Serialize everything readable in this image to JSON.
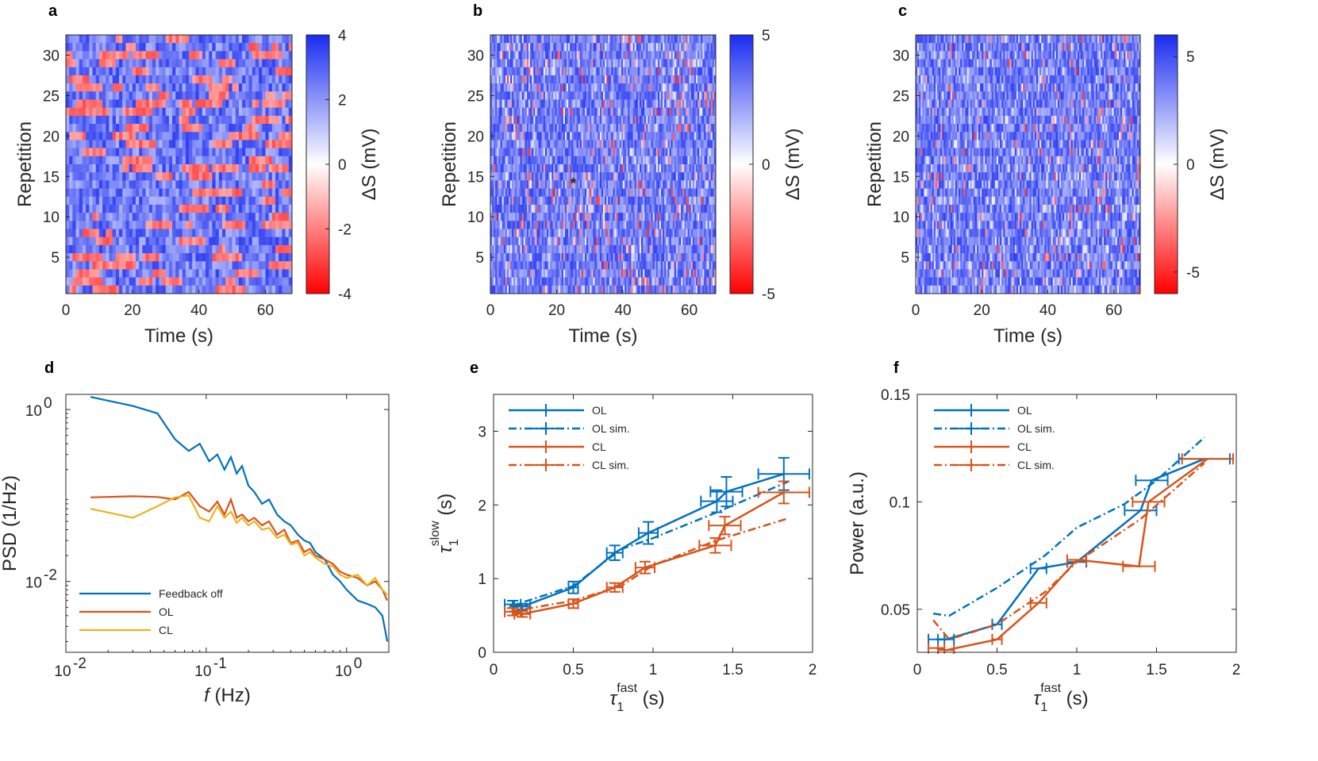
{
  "chart_data": [
    {
      "id": "a",
      "panel_label": "a",
      "type": "heatmap",
      "xlabel": "Time (s)",
      "ylabel": "Repetition",
      "xlim": [
        0,
        68
      ],
      "ylim": [
        0.5,
        32.5
      ],
      "xticks": [
        "0",
        "20",
        "40",
        "60"
      ],
      "yticks": [
        "5",
        "10",
        "15",
        "20",
        "25",
        "30"
      ],
      "colorbar": {
        "label": "ΔS (mV)",
        "range": [
          -4,
          4
        ],
        "ticks": [
          "4",
          "2",
          "0",
          "-2",
          "-4"
        ]
      },
      "rows": 32,
      "cols": 68,
      "seed": 11,
      "red_bias": 0.13,
      "row_runs": true
    },
    {
      "id": "b",
      "panel_label": "b",
      "type": "heatmap",
      "xlabel": "Time (s)",
      "ylabel": "Repetition",
      "xlim": [
        0,
        68
      ],
      "ylim": [
        0.5,
        32.5
      ],
      "xticks": [
        "0",
        "20",
        "40",
        "60"
      ],
      "yticks": [
        "5",
        "10",
        "15",
        "20",
        "25",
        "30"
      ],
      "colorbar": {
        "label": "ΔS (mV)",
        "range": [
          -5,
          5
        ],
        "ticks": [
          "5",
          "0",
          "-5"
        ]
      },
      "rows": 32,
      "cols": 136,
      "seed": 23,
      "red_bias": 0.06,
      "row_runs": false,
      "marker": {
        "time": 25,
        "repetition": 14,
        "color": "#22dd22"
      }
    },
    {
      "id": "c",
      "panel_label": "c",
      "type": "heatmap",
      "xlabel": "Time (s)",
      "ylabel": "Repetition",
      "xlim": [
        0,
        68
      ],
      "ylim": [
        0.5,
        32.5
      ],
      "xticks": [
        "0",
        "20",
        "40",
        "60"
      ],
      "yticks": [
        "5",
        "10",
        "15",
        "20",
        "25",
        "30"
      ],
      "colorbar": {
        "label": "ΔS (mV)",
        "range": [
          -6,
          6
        ],
        "ticks": [
          "5",
          "0",
          "-5"
        ]
      },
      "rows": 32,
      "cols": 136,
      "seed": 37,
      "red_bias": 0.04,
      "row_runs": false
    },
    {
      "id": "d",
      "panel_label": "d",
      "type": "line",
      "log": true,
      "xlabel_italic": "f",
      "xlabel": " (Hz)",
      "ylabel": "PSD (1/Hz)",
      "xlim": [
        0.01,
        2
      ],
      "ylim": [
        0.0015,
        1.5
      ],
      "xticks": [
        0.01,
        0.1,
        1
      ],
      "yticks": [
        0.01,
        1
      ],
      "xtick_bases": [
        "10",
        "10",
        "10"
      ],
      "xtick_exps": [
        "-2",
        "-1",
        "0"
      ],
      "ytick_bases": [
        "10",
        "10"
      ],
      "ytick_exps": [
        "-2",
        "0"
      ],
      "legend": [
        "Feedback off",
        "OL",
        "CL"
      ],
      "series": [
        {
          "name": "Feedback off",
          "color": "#0072BD",
          "x": [
            0.015,
            0.03,
            0.045,
            0.06,
            0.075,
            0.09,
            0.105,
            0.12,
            0.135,
            0.15,
            0.165,
            0.18,
            0.2,
            0.22,
            0.25,
            0.28,
            0.32,
            0.36,
            0.4,
            0.45,
            0.5,
            0.55,
            0.6,
            0.7,
            0.8,
            0.9,
            1.0,
            1.2,
            1.4,
            1.6,
            1.8,
            1.95
          ],
          "y": [
            1.4,
            1.1,
            0.9,
            0.45,
            0.33,
            0.4,
            0.25,
            0.3,
            0.2,
            0.28,
            0.18,
            0.22,
            0.13,
            0.11,
            0.08,
            0.09,
            0.06,
            0.05,
            0.045,
            0.035,
            0.03,
            0.028,
            0.022,
            0.018,
            0.012,
            0.01,
            0.008,
            0.006,
            0.0055,
            0.005,
            0.004,
            0.002
          ]
        },
        {
          "name": "OL",
          "color": "#D95319",
          "x": [
            0.015,
            0.03,
            0.045,
            0.06,
            0.075,
            0.09,
            0.105,
            0.12,
            0.135,
            0.15,
            0.165,
            0.18,
            0.2,
            0.22,
            0.25,
            0.28,
            0.32,
            0.36,
            0.4,
            0.45,
            0.5,
            0.55,
            0.6,
            0.7,
            0.8,
            0.9,
            1.0,
            1.2,
            1.4,
            1.6,
            1.8,
            1.95
          ],
          "y": [
            0.095,
            0.098,
            0.096,
            0.09,
            0.11,
            0.075,
            0.065,
            0.085,
            0.06,
            0.09,
            0.055,
            0.06,
            0.05,
            0.055,
            0.045,
            0.05,
            0.035,
            0.04,
            0.028,
            0.03,
            0.022,
            0.024,
            0.02,
            0.018,
            0.016,
            0.013,
            0.012,
            0.011,
            0.009,
            0.01,
            0.008,
            0.006
          ]
        },
        {
          "name": "CL",
          "color": "#EDB120",
          "x": [
            0.015,
            0.03,
            0.045,
            0.06,
            0.075,
            0.09,
            0.105,
            0.12,
            0.135,
            0.15,
            0.165,
            0.18,
            0.2,
            0.22,
            0.25,
            0.28,
            0.32,
            0.36,
            0.4,
            0.45,
            0.5,
            0.55,
            0.6,
            0.7,
            0.8,
            0.9,
            1.0,
            1.2,
            1.4,
            1.6,
            1.8,
            1.95
          ],
          "y": [
            0.07,
            0.055,
            0.075,
            0.095,
            0.1,
            0.055,
            0.05,
            0.075,
            0.055,
            0.065,
            0.048,
            0.055,
            0.045,
            0.05,
            0.04,
            0.042,
            0.032,
            0.035,
            0.027,
            0.028,
            0.02,
            0.022,
            0.019,
            0.016,
            0.015,
            0.012,
            0.011,
            0.012,
            0.009,
            0.011,
            0.008,
            0.007
          ]
        }
      ]
    },
    {
      "id": "e",
      "panel_label": "e",
      "type": "line",
      "xlabel_sym": "τ",
      "xlabel_sub": "1",
      "xlabel_sup": "fast",
      "xlabel_unit": " (s)",
      "ylabel_sym": "τ",
      "ylabel_sub": "1",
      "ylabel_sup": "slow",
      "ylabel_unit": " (s)",
      "xlim": [
        0,
        2
      ],
      "ylim": [
        0,
        3.5
      ],
      "xticks": [
        "0",
        "0.5",
        "1",
        "1.5",
        "2"
      ],
      "yticks": [
        "0",
        "1",
        "2",
        "3"
      ],
      "legend": [
        "OL",
        "OL sim.",
        "CL",
        "CL sim."
      ],
      "series": [
        {
          "name": "OL",
          "color": "#0072BD",
          "dash": "",
          "x": [
            0.12,
            0.18,
            0.5,
            0.76,
            0.97,
            1.4,
            1.46,
            1.82
          ],
          "y": [
            0.65,
            0.62,
            0.88,
            1.35,
            1.62,
            2.05,
            2.18,
            2.42
          ],
          "xerr": [
            0.05,
            0.05,
            0.03,
            0.05,
            0.06,
            0.1,
            0.1,
            0.16
          ],
          "yerr": [
            0.05,
            0.04,
            0.08,
            0.1,
            0.15,
            0.15,
            0.2,
            0.22
          ]
        },
        {
          "name": "OL sim.",
          "color": "#0072BD",
          "dash": "10,4,2,4",
          "x": [
            0.1,
            0.5,
            0.8,
            1.0,
            1.4,
            1.85
          ],
          "y": [
            0.62,
            0.9,
            1.4,
            1.55,
            1.9,
            2.32
          ]
        },
        {
          "name": "CL",
          "color": "#D95319",
          "dash": "",
          "x": [
            0.12,
            0.18,
            0.5,
            0.76,
            0.95,
            1.39,
            1.45,
            1.82
          ],
          "y": [
            0.55,
            0.52,
            0.66,
            0.88,
            1.15,
            1.45,
            1.72,
            2.17
          ],
          "xerr": [
            0.05,
            0.05,
            0.03,
            0.05,
            0.06,
            0.1,
            0.1,
            0.16
          ],
          "yerr": [
            0.05,
            0.04,
            0.06,
            0.06,
            0.08,
            0.1,
            0.12,
            0.15
          ]
        },
        {
          "name": "CL sim.",
          "color": "#D95319",
          "dash": "10,4,2,4",
          "x": [
            0.1,
            0.5,
            0.8,
            1.0,
            1.4,
            1.85
          ],
          "y": [
            0.55,
            0.7,
            0.9,
            1.18,
            1.52,
            1.82
          ]
        }
      ]
    },
    {
      "id": "f",
      "panel_label": "f",
      "type": "line",
      "xlabel_sym": "τ",
      "xlabel_sub": "1",
      "xlabel_sup": "fast",
      "xlabel_unit": " (s)",
      "ylabel": "Power (a.u.)",
      "xlim": [
        0,
        2
      ],
      "ylim": [
        0.03,
        0.15
      ],
      "xticks": [
        "0",
        "0.5",
        "1",
        "1.5",
        "2"
      ],
      "yticks": [
        "0.05",
        "0.1",
        "0.15"
      ],
      "ytick_vals": [
        0.05,
        0.1,
        0.15
      ],
      "legend": [
        "OL",
        "OL sim.",
        "CL",
        "CL sim."
      ],
      "series": [
        {
          "name": "OL",
          "color": "#0072BD",
          "dash": "",
          "x": [
            0.12,
            0.18,
            0.5,
            0.76,
            1.0,
            1.4,
            1.47,
            1.8
          ],
          "y": [
            0.036,
            0.036,
            0.043,
            0.069,
            0.072,
            0.096,
            0.11,
            0.12
          ],
          "xerr": [
            0.05,
            0.05,
            0.03,
            0.05,
            0.06,
            0.1,
            0.1,
            0.16
          ]
        },
        {
          "name": "OL sim.",
          "color": "#0072BD",
          "dash": "10,4,2,4",
          "x": [
            0.1,
            0.2,
            0.5,
            0.8,
            1.0,
            1.3,
            1.5,
            1.8
          ],
          "y": [
            0.048,
            0.047,
            0.06,
            0.075,
            0.088,
            0.099,
            0.11,
            0.13
          ]
        },
        {
          "name": "CL",
          "color": "#D95319",
          "dash": "",
          "x": [
            0.12,
            0.18,
            0.5,
            0.76,
            1.0,
            1.39,
            1.45,
            1.82
          ],
          "y": [
            0.032,
            0.031,
            0.036,
            0.053,
            0.073,
            0.07,
            0.1,
            0.12
          ],
          "xerr": [
            0.05,
            0.05,
            0.03,
            0.05,
            0.06,
            0.1,
            0.1,
            0.16
          ]
        },
        {
          "name": "CL sim.",
          "color": "#D95319",
          "dash": "10,4,2,4",
          "x": [
            0.1,
            0.2,
            0.5,
            0.8,
            1.0,
            1.4,
            1.8
          ],
          "y": [
            0.045,
            0.036,
            0.043,
            0.058,
            0.072,
            0.092,
            0.118
          ]
        }
      ]
    }
  ]
}
